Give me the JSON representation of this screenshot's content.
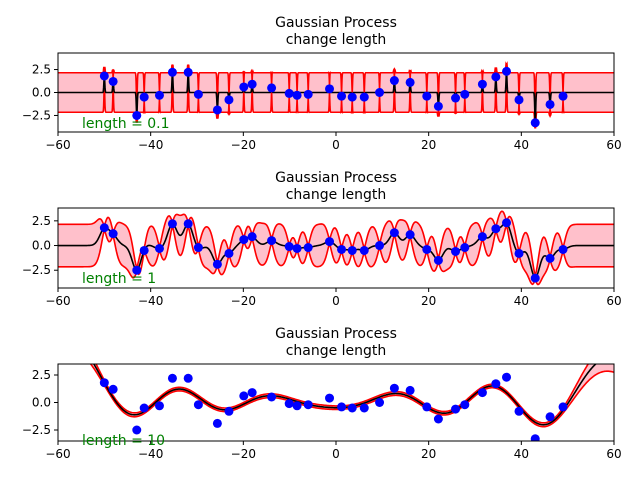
{
  "chart_data": [
    {
      "type": "line",
      "title": "Gaussian Process\nchange length",
      "xlim": [
        -60,
        60
      ],
      "ylim": [
        -4.3,
        4.3
      ],
      "xticks": [
        -60,
        -40,
        -20,
        0,
        20,
        40,
        60
      ],
      "xtick_labels": [
        "−60",
        "−40",
        "−20",
        "0",
        "20",
        "40",
        "60"
      ],
      "yticks": [
        2.5,
        0.0,
        -2.5
      ],
      "ytick_labels": [
        "2.5",
        "0.0",
        "−2.5"
      ],
      "annotation": "length = 0.1",
      "length_scale": 0.1,
      "band_halfwidth_far": 2.15,
      "grid": false,
      "colors": {
        "band": "#ffc0cb",
        "bound": "#ff0000",
        "mean": "#000000",
        "points": "#0000ff",
        "annotation": "#008000"
      }
    },
    {
      "type": "line",
      "title": "Gaussian Process\nchange length",
      "xlim": [
        -60,
        60
      ],
      "ylim": [
        -4.3,
        3.8
      ],
      "xticks": [
        -60,
        -40,
        -20,
        0,
        20,
        40,
        60
      ],
      "xtick_labels": [
        "−60",
        "−40",
        "−20",
        "0",
        "20",
        "40",
        "60"
      ],
      "yticks": [
        2.5,
        0.0,
        -2.5
      ],
      "ytick_labels": [
        "2.5",
        "0.0",
        "−2.5"
      ],
      "annotation": "length = 1",
      "length_scale": 1,
      "band_halfwidth_far": 2.15,
      "grid": false,
      "colors": {
        "band": "#ffc0cb",
        "bound": "#ff0000",
        "mean": "#000000",
        "points": "#0000ff",
        "annotation": "#008000"
      }
    },
    {
      "type": "line",
      "title": "Gaussian Process\nchange length",
      "xlim": [
        -60,
        60
      ],
      "ylim": [
        -3.5,
        3.5
      ],
      "xticks": [
        -60,
        -40,
        -20,
        0,
        20,
        40,
        60
      ],
      "xtick_labels": [
        "−60",
        "−40",
        "−20",
        "0",
        "20",
        "40",
        "60"
      ],
      "yticks": [
        2.5,
        0.0,
        -2.5
      ],
      "ytick_labels": [
        "2.5",
        "0.0",
        "−2.5"
      ],
      "annotation": "length = 10",
      "length_scale": 10,
      "band_halfwidth_far": 2.0,
      "grid": false,
      "colors": {
        "band": "#ffc0cb",
        "bound": "#ff0000",
        "mean": "#000000",
        "points": "#0000ff",
        "annotation": "#008000"
      }
    }
  ],
  "observations": {
    "x": [
      -50.0,
      -48.1,
      -43.0,
      -41.4,
      -38.1,
      -35.3,
      -31.9,
      -29.7,
      -25.6,
      -23.1,
      -19.9,
      -18.1,
      -13.9,
      -10.1,
      -8.4,
      -6.0,
      -1.4,
      1.2,
      3.5,
      6.1,
      9.4,
      12.6,
      16.0,
      19.6,
      22.1,
      25.8,
      27.8,
      31.6,
      34.5,
      36.8,
      39.5,
      43.0,
      46.2,
      49.0
    ],
    "y": [
      1.8,
      1.2,
      -2.5,
      -0.5,
      -0.3,
      2.2,
      2.2,
      -0.2,
      -1.9,
      -0.8,
      0.6,
      0.9,
      0.5,
      -0.1,
      -0.3,
      -0.2,
      0.4,
      -0.4,
      -0.5,
      -0.5,
      0.0,
      1.3,
      1.1,
      -0.4,
      -1.5,
      -0.6,
      -0.2,
      0.9,
      1.7,
      2.3,
      -0.8,
      -3.3,
      -1.3,
      -0.4
    ]
  }
}
